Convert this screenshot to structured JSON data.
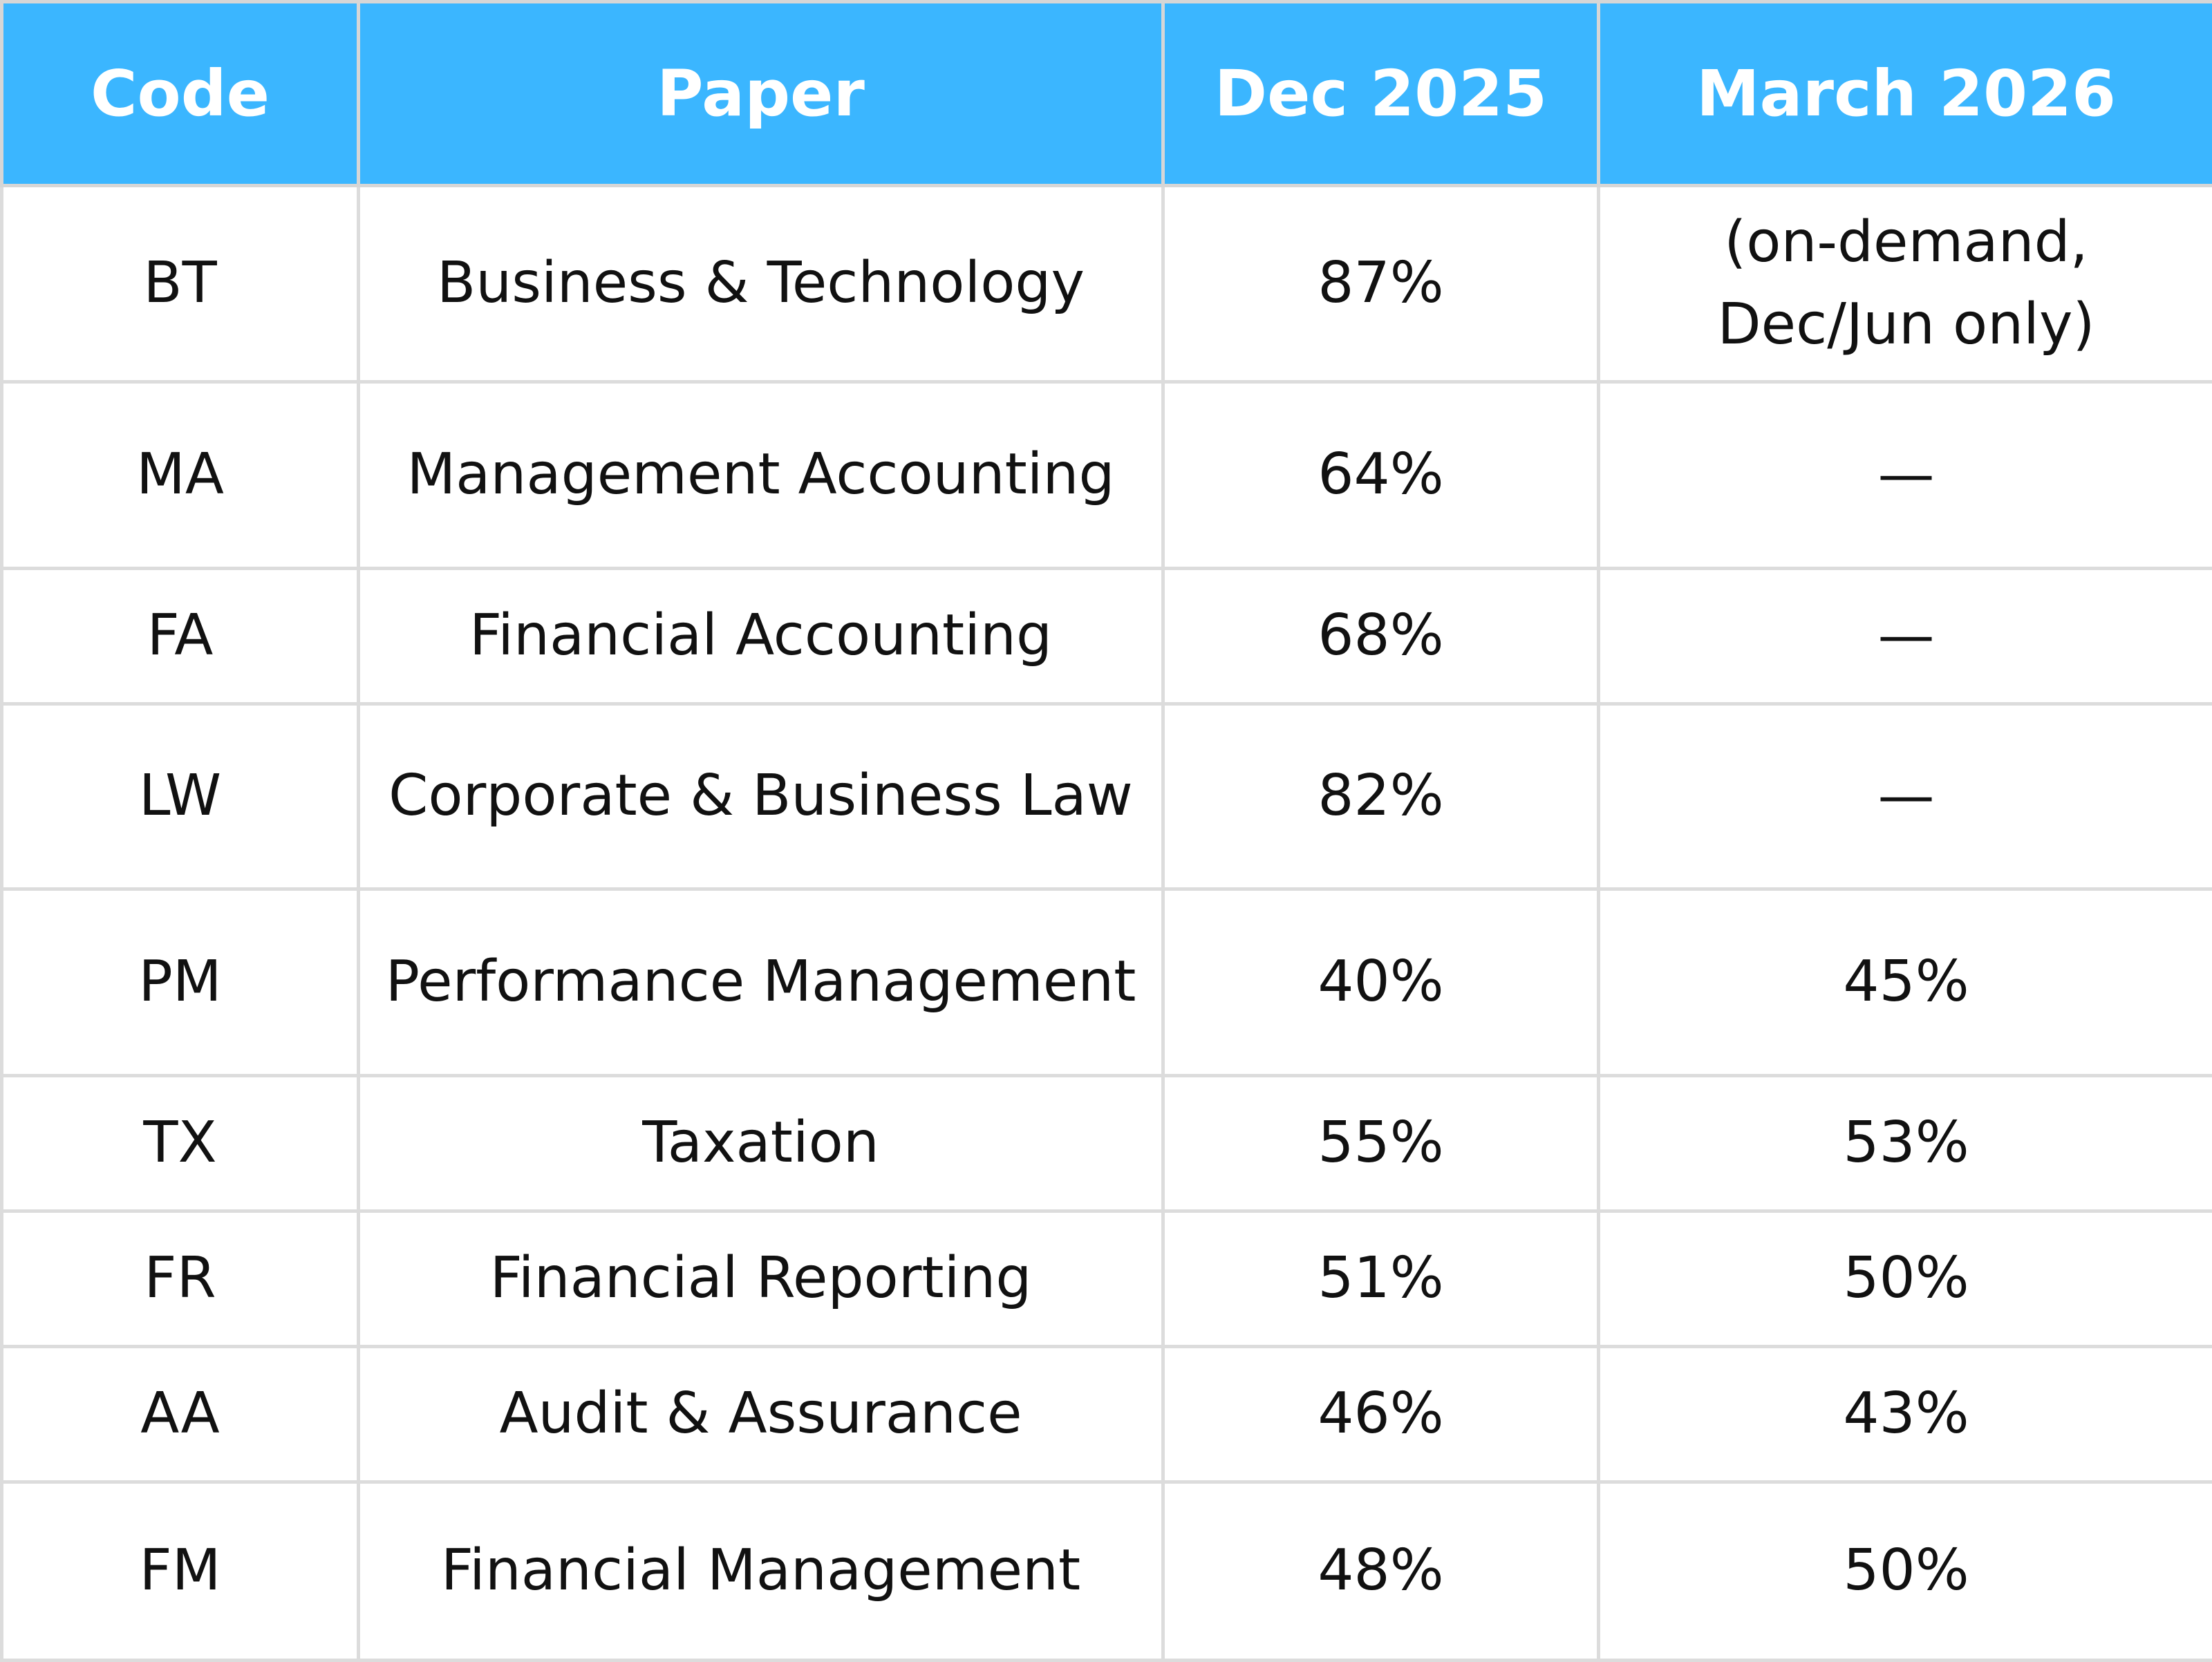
{
  "header": {
    "code": "Code",
    "paper": "Paper",
    "dec": "Dec 2025",
    "mar": "March 2026"
  },
  "rows": [
    {
      "code": "BT",
      "paper": "Business & Technology",
      "dec": "87%",
      "mar_line1": "(on-demand,",
      "mar_line2": "Dec/Jun only)"
    },
    {
      "code": "MA",
      "paper": "Management Accounting",
      "dec": "64%",
      "mar": "—"
    },
    {
      "code": "FA",
      "paper": "Financial Accounting",
      "dec": "68%",
      "mar": "—"
    },
    {
      "code": "LW",
      "paper": "Corporate & Business Law",
      "dec": "82%",
      "mar": "—"
    },
    {
      "code": "PM",
      "paper": "Performance Management",
      "dec": "40%",
      "mar": "45%"
    },
    {
      "code": "TX",
      "paper": "Taxation",
      "dec": "55%",
      "mar": "53%"
    },
    {
      "code": "FR",
      "paper": "Financial Reporting",
      "dec": "51%",
      "mar": "50%"
    },
    {
      "code": "AA",
      "paper": "Audit & Assurance",
      "dec": "46%",
      "mar": "43%"
    },
    {
      "code": "FM",
      "paper": "Financial Management",
      "dec": "48%",
      "mar": "50%"
    }
  ],
  "colors": {
    "header_bg": "#3bb6ff",
    "header_text": "#ffffff",
    "grid": "#dcdcdc",
    "body_text": "#111111"
  }
}
